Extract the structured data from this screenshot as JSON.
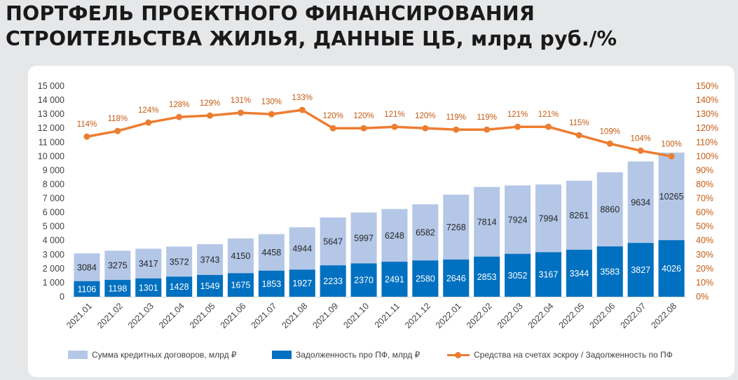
{
  "title_lines": [
    "ПОРТФЕЛЬ ПРОЕКТНОГО ФИНАНСИРОВАНИЯ",
    "СТРОИТЕЛЬСТВА ЖИЛЬЯ, ДАННЫЕ ЦБ, млрд руб./%"
  ],
  "colors": {
    "credit_bars": "#b4c7e7",
    "debt_bars": "#0070c0",
    "ratio_line": "#ed7d31",
    "right_axis_text": "#c55a11",
    "left_axis_text": "#404040"
  },
  "chart_data": {
    "type": "bar",
    "categories": [
      "2021.01",
      "2021.02",
      "2021.03",
      "2021.04",
      "2021.05",
      "2021.06",
      "2021.07",
      "2021.08",
      "2021.09",
      "2021.10",
      "2021.11",
      "2021.12",
      "2022.01",
      "2022.02",
      "2022.03",
      "2022.04",
      "2022.05",
      "2022.06",
      "2022.07",
      "2022.08"
    ],
    "series": [
      {
        "name": "Сумма  кредитных договоров, млрд ₽",
        "type": "bar",
        "axis": "left",
        "values": [
          3084,
          3275,
          3417,
          3572,
          3743,
          4150,
          4458,
          4944,
          5647,
          5997,
          6248,
          6582,
          7268,
          7814,
          7924,
          7994,
          8261,
          8860,
          9634,
          10265
        ]
      },
      {
        "name": "Задолженность про ПФ, млрд ₽",
        "type": "bar",
        "axis": "left",
        "values": [
          1106,
          1198,
          1301,
          1428,
          1549,
          1675,
          1853,
          1927,
          2233,
          2370,
          2491,
          2580,
          2646,
          2853,
          3052,
          3167,
          3344,
          3583,
          3827,
          4026
        ]
      },
      {
        "name": "Средства на счетах эскроу / Задолженность по ПФ",
        "type": "line",
        "axis": "right",
        "values": [
          114,
          118,
          124,
          128,
          129,
          131,
          130,
          133,
          120,
          120,
          121,
          120,
          119,
          119,
          121,
          121,
          115,
          109,
          104,
          100
        ]
      }
    ],
    "left_axis": {
      "ylim": [
        0,
        15000
      ],
      "ticks": [
        "0",
        "1 000",
        "2 000",
        "3 000",
        "4 000",
        "5 000",
        "6 000",
        "7 000",
        "8 000",
        "9 000",
        "10 000",
        "11 000",
        "12 000",
        "13 000",
        "14 000",
        "15 000"
      ]
    },
    "right_axis": {
      "ylim": [
        0,
        150
      ],
      "ticks": [
        "0%",
        "10%",
        "20%",
        "30%",
        "40%",
        "50%",
        "60%",
        "70%",
        "80%",
        "90%",
        "100%",
        "110%",
        "120%",
        "130%",
        "140%",
        "150%"
      ]
    },
    "grid": false,
    "legend_position": "bottom",
    "bars_overlap": true
  }
}
